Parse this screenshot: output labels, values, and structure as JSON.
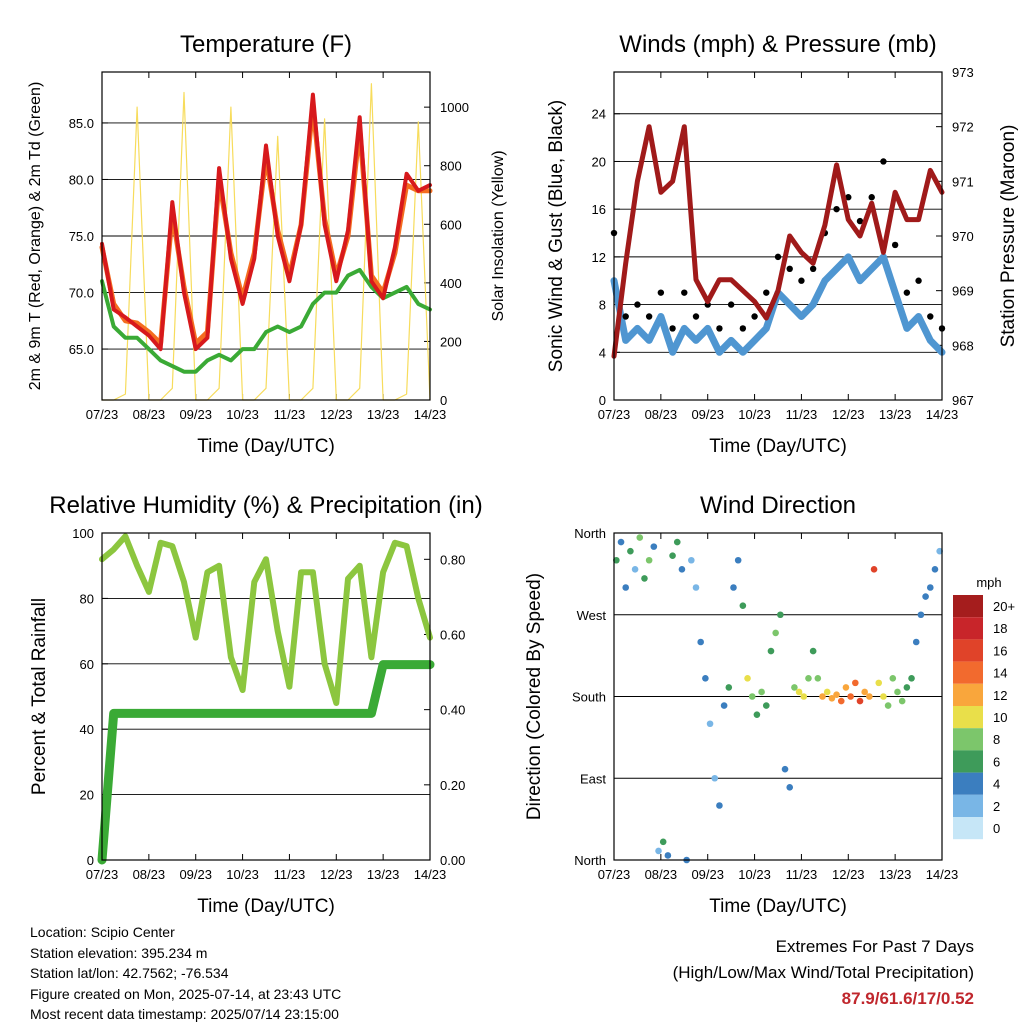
{
  "x_tick_labels": [
    "07/23",
    "08/23",
    "09/23",
    "10/23",
    "11/23",
    "12/23",
    "13/23",
    "14/23"
  ],
  "colors": {
    "temp_2m": "#d7191c",
    "temp_9m": "#f46d20",
    "dewpoint": "#3aaa35",
    "insolation": "#f7dc5c",
    "gust": "#000000",
    "wind": "#4f96d1",
    "pressure": "#a01a1a",
    "rh": "#8cc63f",
    "precip": "#3aaa35"
  },
  "chart_data": [
    {
      "type": "line",
      "title": "Temperature (F)",
      "xlabel": "Time (Day/UTC)",
      "ylabel": "2m & 9m T (Red, Orange) & 2m Td (Green)",
      "y2label": "Solar Insolation (Yellow)",
      "ylim": [
        60.5,
        89.5
      ],
      "y2lim": [
        0,
        1120
      ],
      "yticks": [
        "65.0",
        "70.0",
        "75.0",
        "80.0",
        "85.0"
      ],
      "y2ticks": [
        "0",
        "200",
        "400",
        "600",
        "800",
        "1000"
      ],
      "x": [
        0,
        0.25,
        0.5,
        0.75,
        1,
        1.25,
        1.5,
        1.75,
        2,
        2.25,
        2.5,
        2.75,
        3,
        3.25,
        3.5,
        3.75,
        4,
        4.25,
        4.5,
        4.75,
        5,
        5.25,
        5.5,
        5.75,
        6,
        6.25,
        6.5,
        6.75,
        7
      ],
      "series": [
        {
          "name": "2m T",
          "axis": "left",
          "values": [
            74.3,
            68.5,
            67.8,
            67.0,
            66.2,
            65.0,
            78.0,
            70.0,
            65.0,
            66.0,
            81.0,
            73.0,
            69.0,
            73.0,
            83.0,
            75.0,
            71.0,
            76.0,
            87.5,
            76.0,
            71.0,
            75.5,
            85.5,
            71.0,
            69.5,
            74.0,
            80.5,
            79.0,
            79.5
          ]
        },
        {
          "name": "9m T",
          "axis": "left",
          "values": [
            74.0,
            69.0,
            67.5,
            67.3,
            66.5,
            65.5,
            77.0,
            70.5,
            65.5,
            66.5,
            80.0,
            73.5,
            69.5,
            73.5,
            82.0,
            75.5,
            71.5,
            76.0,
            86.5,
            76.5,
            71.5,
            75.0,
            84.5,
            71.5,
            70.0,
            73.5,
            79.5,
            79.0,
            79.0
          ]
        },
        {
          "name": "2m Td",
          "axis": "left",
          "values": [
            71.0,
            67.0,
            66.0,
            66.0,
            65.0,
            64.0,
            63.5,
            63.0,
            63.0,
            64.0,
            64.5,
            64.0,
            65.0,
            65.0,
            66.5,
            67.0,
            66.5,
            67.0,
            69.0,
            70.0,
            70.0,
            71.5,
            72.0,
            70.5,
            69.5,
            70.0,
            70.5,
            69.0,
            68.5
          ]
        },
        {
          "name": "Solar Insolation",
          "axis": "right",
          "values": [
            0,
            0,
            20,
            1000,
            0,
            0,
            40,
            1050,
            0,
            0,
            40,
            1000,
            0,
            0,
            40,
            900,
            0,
            0,
            40,
            960,
            0,
            0,
            40,
            1080,
            0,
            0,
            20,
            950,
            0
          ]
        }
      ]
    },
    {
      "type": "line",
      "title": "Winds (mph) & Pressure (mb)",
      "xlabel": "Time (Day/UTC)",
      "ylabel": "Sonic Wind & Gust (Blue, Black)",
      "y2label": "Station Pressure (Maroon)",
      "ylim": [
        0,
        27.5
      ],
      "y2lim": [
        967,
        973
      ],
      "yticks": [
        "0",
        "4",
        "8",
        "12",
        "16",
        "20",
        "24"
      ],
      "y2ticks": [
        "967",
        "968",
        "969",
        "970",
        "971",
        "972",
        "973"
      ],
      "x": [
        0,
        0.25,
        0.5,
        0.75,
        1,
        1.25,
        1.5,
        1.75,
        2,
        2.25,
        2.5,
        2.75,
        3,
        3.25,
        3.5,
        3.75,
        4,
        4.25,
        4.5,
        4.75,
        5,
        5.25,
        5.5,
        5.75,
        6,
        6.25,
        6.5,
        6.75,
        7
      ],
      "series": [
        {
          "name": "Sonic Wind",
          "axis": "left",
          "values": [
            10,
            5,
            6,
            5,
            7,
            4,
            6,
            5,
            6,
            4,
            5,
            4,
            5,
            6,
            9,
            8,
            7,
            8,
            10,
            11,
            12,
            10,
            11,
            12,
            9,
            6,
            7,
            5,
            4
          ]
        },
        {
          "name": "Gust",
          "axis": "left",
          "values": [
            14,
            7,
            8,
            7,
            9,
            6,
            9,
            7,
            8,
            6,
            8,
            6,
            7,
            9,
            12,
            11,
            10,
            11,
            14,
            16,
            17,
            15,
            17,
            20,
            13,
            9,
            10,
            7,
            6
          ]
        },
        {
          "name": "Station Pressure",
          "axis": "right",
          "values": [
            967.8,
            969.5,
            971.0,
            972.0,
            970.8,
            971.0,
            972.0,
            969.2,
            968.8,
            969.2,
            969.2,
            969.0,
            968.8,
            968.5,
            969.0,
            970.0,
            969.7,
            969.5,
            970.2,
            971.3,
            970.3,
            970.0,
            970.6,
            969.7,
            970.8,
            970.3,
            970.3,
            971.2,
            970.8
          ]
        }
      ]
    },
    {
      "type": "line",
      "title": "Relative Humidity (%) & Precipitation (in)",
      "xlabel": "Time (Day/UTC)",
      "ylabel": "Percent & Total Rainfall",
      "ylim": [
        0,
        100
      ],
      "y2lim": [
        0,
        0.87
      ],
      "yticks": [
        "0",
        "20",
        "40",
        "60",
        "80",
        "100"
      ],
      "y2ticks": [
        "0.00",
        "0.20",
        "0.40",
        "0.60",
        "0.80"
      ],
      "x": [
        0,
        0.25,
        0.5,
        0.75,
        1,
        1.25,
        1.5,
        1.75,
        2,
        2.25,
        2.5,
        2.75,
        3,
        3.25,
        3.5,
        3.75,
        4,
        4.25,
        4.5,
        4.75,
        5,
        5.25,
        5.5,
        5.75,
        6,
        6.25,
        6.5,
        6.75,
        7
      ],
      "series": [
        {
          "name": "Relative Humidity",
          "axis": "left",
          "values": [
            92,
            95,
            99,
            90,
            82,
            97,
            96,
            85,
            68,
            88,
            90,
            62,
            52,
            85,
            92,
            70,
            53,
            88,
            88,
            60,
            48,
            86,
            90,
            62,
            88,
            97,
            96,
            80,
            68
          ]
        },
        {
          "name": "Total Precipitation",
          "axis": "right",
          "values": [
            0.0,
            0.39,
            0.39,
            0.39,
            0.39,
            0.39,
            0.39,
            0.39,
            0.39,
            0.39,
            0.39,
            0.39,
            0.39,
            0.39,
            0.39,
            0.39,
            0.39,
            0.39,
            0.39,
            0.39,
            0.39,
            0.39,
            0.39,
            0.39,
            0.52,
            0.52,
            0.52,
            0.52,
            0.52
          ]
        }
      ]
    },
    {
      "type": "scatter",
      "title": "Wind Direction",
      "xlabel": "Time (Day/UTC)",
      "ylabel": "Direction (Colored By Speed)",
      "yticks": [
        "North",
        "East",
        "South",
        "West",
        "North"
      ],
      "ylim": [
        0,
        360
      ],
      "colorbar": {
        "unit": "mph",
        "labels": [
          "20+",
          "18",
          "16",
          "14",
          "12",
          "10",
          "8",
          "6",
          "4",
          "2",
          "0"
        ],
        "colors": [
          "#a51d1d",
          "#c8252a",
          "#e04329",
          "#f26a2e",
          "#f9a63c",
          "#e9df4a",
          "#7cc66b",
          "#3e9b5a",
          "#3b7ebf",
          "#79b6e6",
          "#c6e6f7"
        ]
      },
      "points": [
        {
          "x": 0.05,
          "dir": 330,
          "speed": 6
        },
        {
          "x": 0.15,
          "dir": 350,
          "speed": 5
        },
        {
          "x": 0.25,
          "dir": 300,
          "speed": 4
        },
        {
          "x": 0.35,
          "dir": 340,
          "speed": 7
        },
        {
          "x": 0.45,
          "dir": 320,
          "speed": 3
        },
        {
          "x": 0.55,
          "dir": 355,
          "speed": 8
        },
        {
          "x": 0.65,
          "dir": 310,
          "speed": 6
        },
        {
          "x": 0.75,
          "dir": 330,
          "speed": 9
        },
        {
          "x": 0.85,
          "dir": 345,
          "speed": 5
        },
        {
          "x": 0.95,
          "dir": 10,
          "speed": 3
        },
        {
          "x": 1.05,
          "dir": 20,
          "speed": 6
        },
        {
          "x": 1.15,
          "dir": 5,
          "speed": 4
        },
        {
          "x": 1.25,
          "dir": 335,
          "speed": 6
        },
        {
          "x": 1.35,
          "dir": 350,
          "speed": 7
        },
        {
          "x": 1.45,
          "dir": 320,
          "speed": 5
        },
        {
          "x": 1.55,
          "dir": 0,
          "speed": 4
        },
        {
          "x": 1.65,
          "dir": 330,
          "speed": 3
        },
        {
          "x": 1.75,
          "dir": 300,
          "speed": 2
        },
        {
          "x": 1.85,
          "dir": 240,
          "speed": 5
        },
        {
          "x": 1.95,
          "dir": 200,
          "speed": 4
        },
        {
          "x": 2.05,
          "dir": 150,
          "speed": 3
        },
        {
          "x": 2.15,
          "dir": 90,
          "speed": 2
        },
        {
          "x": 2.25,
          "dir": 60,
          "speed": 4
        },
        {
          "x": 2.35,
          "dir": 170,
          "speed": 5
        },
        {
          "x": 2.45,
          "dir": 190,
          "speed": 6
        },
        {
          "x": 2.55,
          "dir": 300,
          "speed": 4
        },
        {
          "x": 2.65,
          "dir": 330,
          "speed": 5
        },
        {
          "x": 2.75,
          "dir": 280,
          "speed": 6
        },
        {
          "x": 2.85,
          "dir": 200,
          "speed": 10
        },
        {
          "x": 2.95,
          "dir": 180,
          "speed": 8
        },
        {
          "x": 3.05,
          "dir": 160,
          "speed": 7
        },
        {
          "x": 3.15,
          "dir": 185,
          "speed": 8
        },
        {
          "x": 3.25,
          "dir": 170,
          "speed": 6
        },
        {
          "x": 3.35,
          "dir": 230,
          "speed": 7
        },
        {
          "x": 3.45,
          "dir": 250,
          "speed": 8
        },
        {
          "x": 3.55,
          "dir": 270,
          "speed": 6
        },
        {
          "x": 3.65,
          "dir": 100,
          "speed": 5
        },
        {
          "x": 3.75,
          "dir": 80,
          "speed": 4
        },
        {
          "x": 3.85,
          "dir": 190,
          "speed": 9
        },
        {
          "x": 3.95,
          "dir": 185,
          "speed": 11
        },
        {
          "x": 4.05,
          "dir": 180,
          "speed": 10
        },
        {
          "x": 4.15,
          "dir": 200,
          "speed": 8
        },
        {
          "x": 4.25,
          "dir": 230,
          "speed": 7
        },
        {
          "x": 4.35,
          "dir": 200,
          "speed": 9
        },
        {
          "x": 4.45,
          "dir": 180,
          "speed": 12
        },
        {
          "x": 4.55,
          "dir": 185,
          "speed": 11
        },
        {
          "x": 4.65,
          "dir": 178,
          "speed": 13
        },
        {
          "x": 4.75,
          "dir": 182,
          "speed": 12
        },
        {
          "x": 4.85,
          "dir": 175,
          "speed": 14
        },
        {
          "x": 4.95,
          "dir": 190,
          "speed": 13
        },
        {
          "x": 5.05,
          "dir": 180,
          "speed": 15
        },
        {
          "x": 5.15,
          "dir": 195,
          "speed": 14
        },
        {
          "x": 5.25,
          "dir": 175,
          "speed": 16
        },
        {
          "x": 5.35,
          "dir": 185,
          "speed": 13
        },
        {
          "x": 5.45,
          "dir": 180,
          "speed": 12
        },
        {
          "x": 5.55,
          "dir": 320,
          "speed": 17
        },
        {
          "x": 5.65,
          "dir": 195,
          "speed": 11
        },
        {
          "x": 5.75,
          "dir": 180,
          "speed": 10
        },
        {
          "x": 5.85,
          "dir": 170,
          "speed": 9
        },
        {
          "x": 5.95,
          "dir": 200,
          "speed": 8
        },
        {
          "x": 6.05,
          "dir": 185,
          "speed": 9
        },
        {
          "x": 6.15,
          "dir": 175,
          "speed": 8
        },
        {
          "x": 6.25,
          "dir": 190,
          "speed": 7
        },
        {
          "x": 6.35,
          "dir": 200,
          "speed": 6
        },
        {
          "x": 6.45,
          "dir": 240,
          "speed": 5
        },
        {
          "x": 6.55,
          "dir": 270,
          "speed": 4
        },
        {
          "x": 6.65,
          "dir": 290,
          "speed": 4
        },
        {
          "x": 6.75,
          "dir": 300,
          "speed": 5
        },
        {
          "x": 6.85,
          "dir": 320,
          "speed": 4
        },
        {
          "x": 6.95,
          "dir": 340,
          "speed": 3
        }
      ]
    }
  ],
  "info": {
    "location": "Location: Scipio Center",
    "elevation": "Station elevation: 395.234 m",
    "latlon": "Station lat/lon: 42.7562; -76.534",
    "created": "Figure created on Mon, 2025-07-14, at 23:43 UTC",
    "recent": "Most recent data timestamp: 2025/07/14 23:15:00"
  },
  "extremes": {
    "title": "Extremes For Past 7 Days",
    "subtitle": "(High/Low/Max Wind/Total Precipitation)",
    "values": "87.9/61.6/17/0.52"
  }
}
